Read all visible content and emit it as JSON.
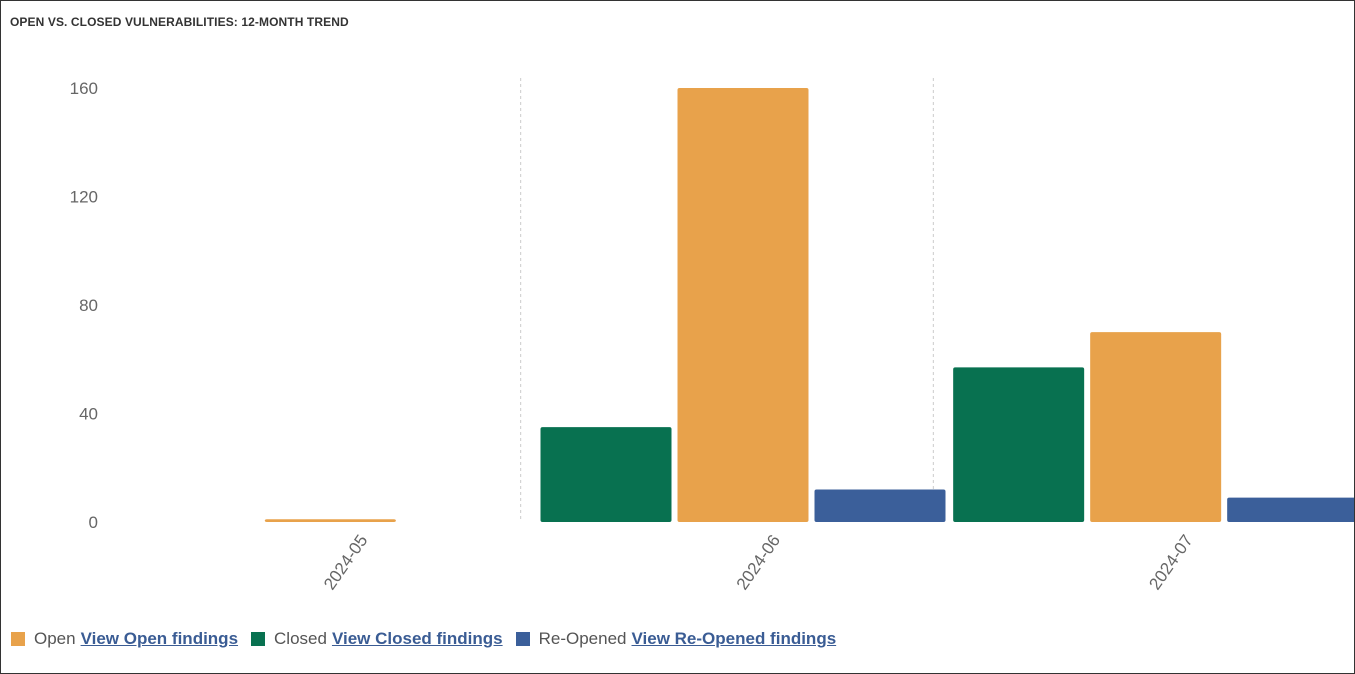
{
  "page": {
    "title": "OPEN VS. CLOSED VULNERABILITIES: 12-MONTH TREND"
  },
  "colors": {
    "open": "#e8a24b",
    "closed": "#087150",
    "reopened": "#3b5f9a",
    "axis_text": "#666666",
    "grid_divider": "#cccccc"
  },
  "legend": [
    {
      "key": "open",
      "label": "Open",
      "link": "View Open findings"
    },
    {
      "key": "closed",
      "label": "Closed",
      "link": "View Closed findings"
    },
    {
      "key": "reopened",
      "label": "Re-Opened",
      "link": "View Re-Opened findings"
    }
  ],
  "chart_data": {
    "type": "bar",
    "title": "OPEN VS. CLOSED VULNERABILITIES: 12-MONTH TREND",
    "categories": [
      "2024-05",
      "2024-06",
      "2024-07"
    ],
    "series": [
      {
        "name": "Closed",
        "key": "closed",
        "values": [
          0,
          35,
          57
        ]
      },
      {
        "name": "Open",
        "key": "open",
        "values": [
          1,
          160,
          70
        ]
      },
      {
        "name": "Re-Opened",
        "key": "reopened",
        "values": [
          0,
          12,
          9
        ]
      }
    ],
    "yticks": [
      0,
      40,
      80,
      120,
      160
    ],
    "ylim": [
      0,
      160
    ],
    "xlabel": "",
    "ylabel": "",
    "legend_position": "bottom-left",
    "grid": false,
    "category_dividers": true
  }
}
